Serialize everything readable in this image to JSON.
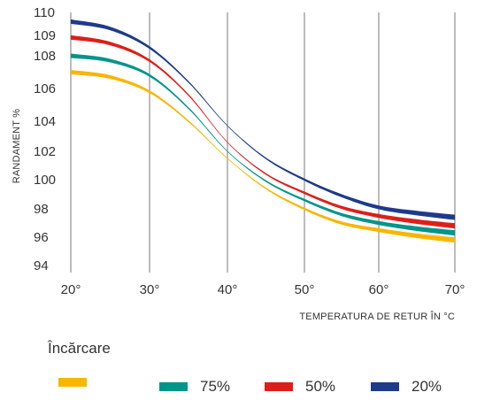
{
  "chart_data": {
    "type": "line",
    "ylabel": "RANDAMENT %",
    "xlabel": "TEMPERATURA DE RETUR ÎN °C",
    "x_ticks": [
      "20°",
      "30°",
      "40°",
      "50°",
      "60°",
      "70°"
    ],
    "y_ticks": [
      "94",
      "96",
      "98",
      "100",
      "102",
      "104",
      "106",
      "108",
      "109",
      "110"
    ],
    "xlim": [
      20,
      70
    ],
    "grid": "vertical",
    "legend": {
      "title": "Încărcare",
      "placement": "bottom"
    },
    "series": [
      {
        "name": "",
        "color": "#f9b600",
        "x": [
          20,
          25,
          30,
          35,
          40,
          45,
          50,
          55,
          60,
          65,
          70
        ],
        "y": [
          107.0,
          106.7,
          105.8,
          104.0,
          101.5,
          99.4,
          98.0,
          97.0,
          96.5,
          96.1,
          95.8
        ]
      },
      {
        "name": "75%",
        "color": "#00958a",
        "x": [
          20,
          25,
          30,
          35,
          40,
          45,
          50,
          55,
          60,
          65,
          70
        ],
        "y": [
          108.0,
          107.7,
          106.8,
          104.8,
          102.0,
          99.9,
          98.6,
          97.6,
          97.0,
          96.6,
          96.3
        ]
      },
      {
        "name": "50%",
        "color": "#dd1f1a",
        "x": [
          20,
          25,
          30,
          35,
          40,
          45,
          50,
          55,
          60,
          65,
          70
        ],
        "y": [
          108.9,
          108.6,
          107.7,
          105.6,
          102.6,
          100.4,
          99.1,
          98.1,
          97.5,
          97.1,
          96.8
        ]
      },
      {
        "name": "20%",
        "color": "#1e3a8a",
        "x": [
          20,
          25,
          30,
          35,
          40,
          45,
          50,
          55,
          60,
          65,
          70
        ],
        "y": [
          109.6,
          109.3,
          108.4,
          106.4,
          103.7,
          101.5,
          100.0,
          98.9,
          98.1,
          97.7,
          97.4
        ]
      }
    ]
  }
}
